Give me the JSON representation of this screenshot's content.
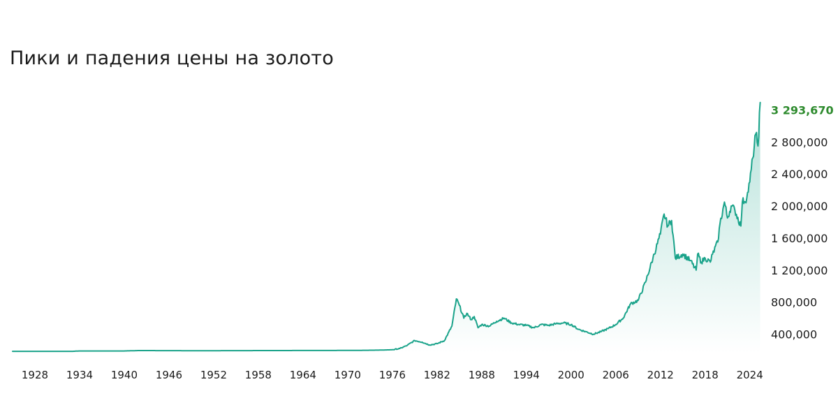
{
  "page": {
    "title": "Пики и падения цены на золото"
  },
  "chart_data": {
    "type": "area",
    "title": "Пики и падения цены на золото",
    "xlabel": "",
    "ylabel": "",
    "xlim": [
      1925,
      2026
    ],
    "ylim": [
      160000,
      3300000
    ],
    "grid": false,
    "legend": "none",
    "colors": {
      "line": "#1aa38a",
      "fill": "#1aa38a",
      "last_value": "#2e8b2e",
      "text": "#1a1a1a"
    },
    "x_tick_labels": [
      "1928",
      "1934",
      "1940",
      "1946",
      "1952",
      "1958",
      "1964",
      "1970",
      "1976",
      "1982",
      "1988",
      "1994",
      "2000",
      "2006",
      "2012",
      "2018",
      "2024"
    ],
    "x_tick_values": [
      1928,
      1934,
      1940,
      1946,
      1952,
      1958,
      1964,
      1970,
      1976,
      1982,
      1988,
      1994,
      2000,
      2006,
      2012,
      2018,
      2024
    ],
    "y_tick_labels": [
      "400,000",
      "800,000",
      "1 200,000",
      "1 600,000",
      "2 000,000",
      "2 400,000",
      "2 800,000"
    ],
    "y_tick_values": [
      400000,
      800000,
      1200000,
      1600000,
      2000000,
      2400000,
      2800000
    ],
    "last_value_label": "3 293,670",
    "series": [
      {
        "x": [
          1925,
          1933,
          1934,
          1940,
          1942,
          1950,
          1960,
          1968,
          1971,
          1974,
          1976,
          1977,
          1978,
          1979,
          1980,
          1981,
          1982,
          1983,
          1984,
          1984.6,
          1985,
          1985.6,
          1986,
          1986.6,
          1987,
          1987.5,
          1988,
          1989,
          1990,
          1991,
          1992,
          1993,
          1994,
          1995,
          1996,
          1997,
          1998,
          1999,
          2000,
          2001,
          2002,
          2003,
          2004,
          2005,
          2006,
          2007,
          2008,
          2009,
          2010,
          2011,
          2012,
          2012.5,
          2013,
          2013.5,
          2014,
          2015,
          2016,
          2016.8,
          2017,
          2017.5,
          2018,
          2018.7,
          2019,
          2019.7,
          2020,
          2020.6,
          2021,
          2021.5,
          2022,
          2022.8,
          2023,
          2023.6,
          2024,
          2024.4,
          2024.8,
          2025.1,
          2025.4
        ],
        "values": [
          185000,
          185000,
          190000,
          190000,
          195000,
          193000,
          195000,
          196000,
          197000,
          200000,
          205000,
          220000,
          260000,
          320000,
          300000,
          265000,
          280000,
          320000,
          500000,
          840000,
          760000,
          600000,
          660000,
          580000,
          620000,
          480000,
          520000,
          500000,
          560000,
          600000,
          540000,
          520000,
          510000,
          480000,
          520000,
          510000,
          530000,
          540000,
          520000,
          460000,
          430000,
          400000,
          430000,
          470000,
          520000,
          600000,
          780000,
          820000,
          1050000,
          1350000,
          1650000,
          1900000,
          1750000,
          1820000,
          1350000,
          1400000,
          1320000,
          1200000,
          1400000,
          1300000,
          1350000,
          1300000,
          1400000,
          1550000,
          1780000,
          2050000,
          1850000,
          2000000,
          1950000,
          1750000,
          2050000,
          2100000,
          2300000,
          2600000,
          2900000,
          2750000,
          3293670
        ]
      }
    ]
  }
}
